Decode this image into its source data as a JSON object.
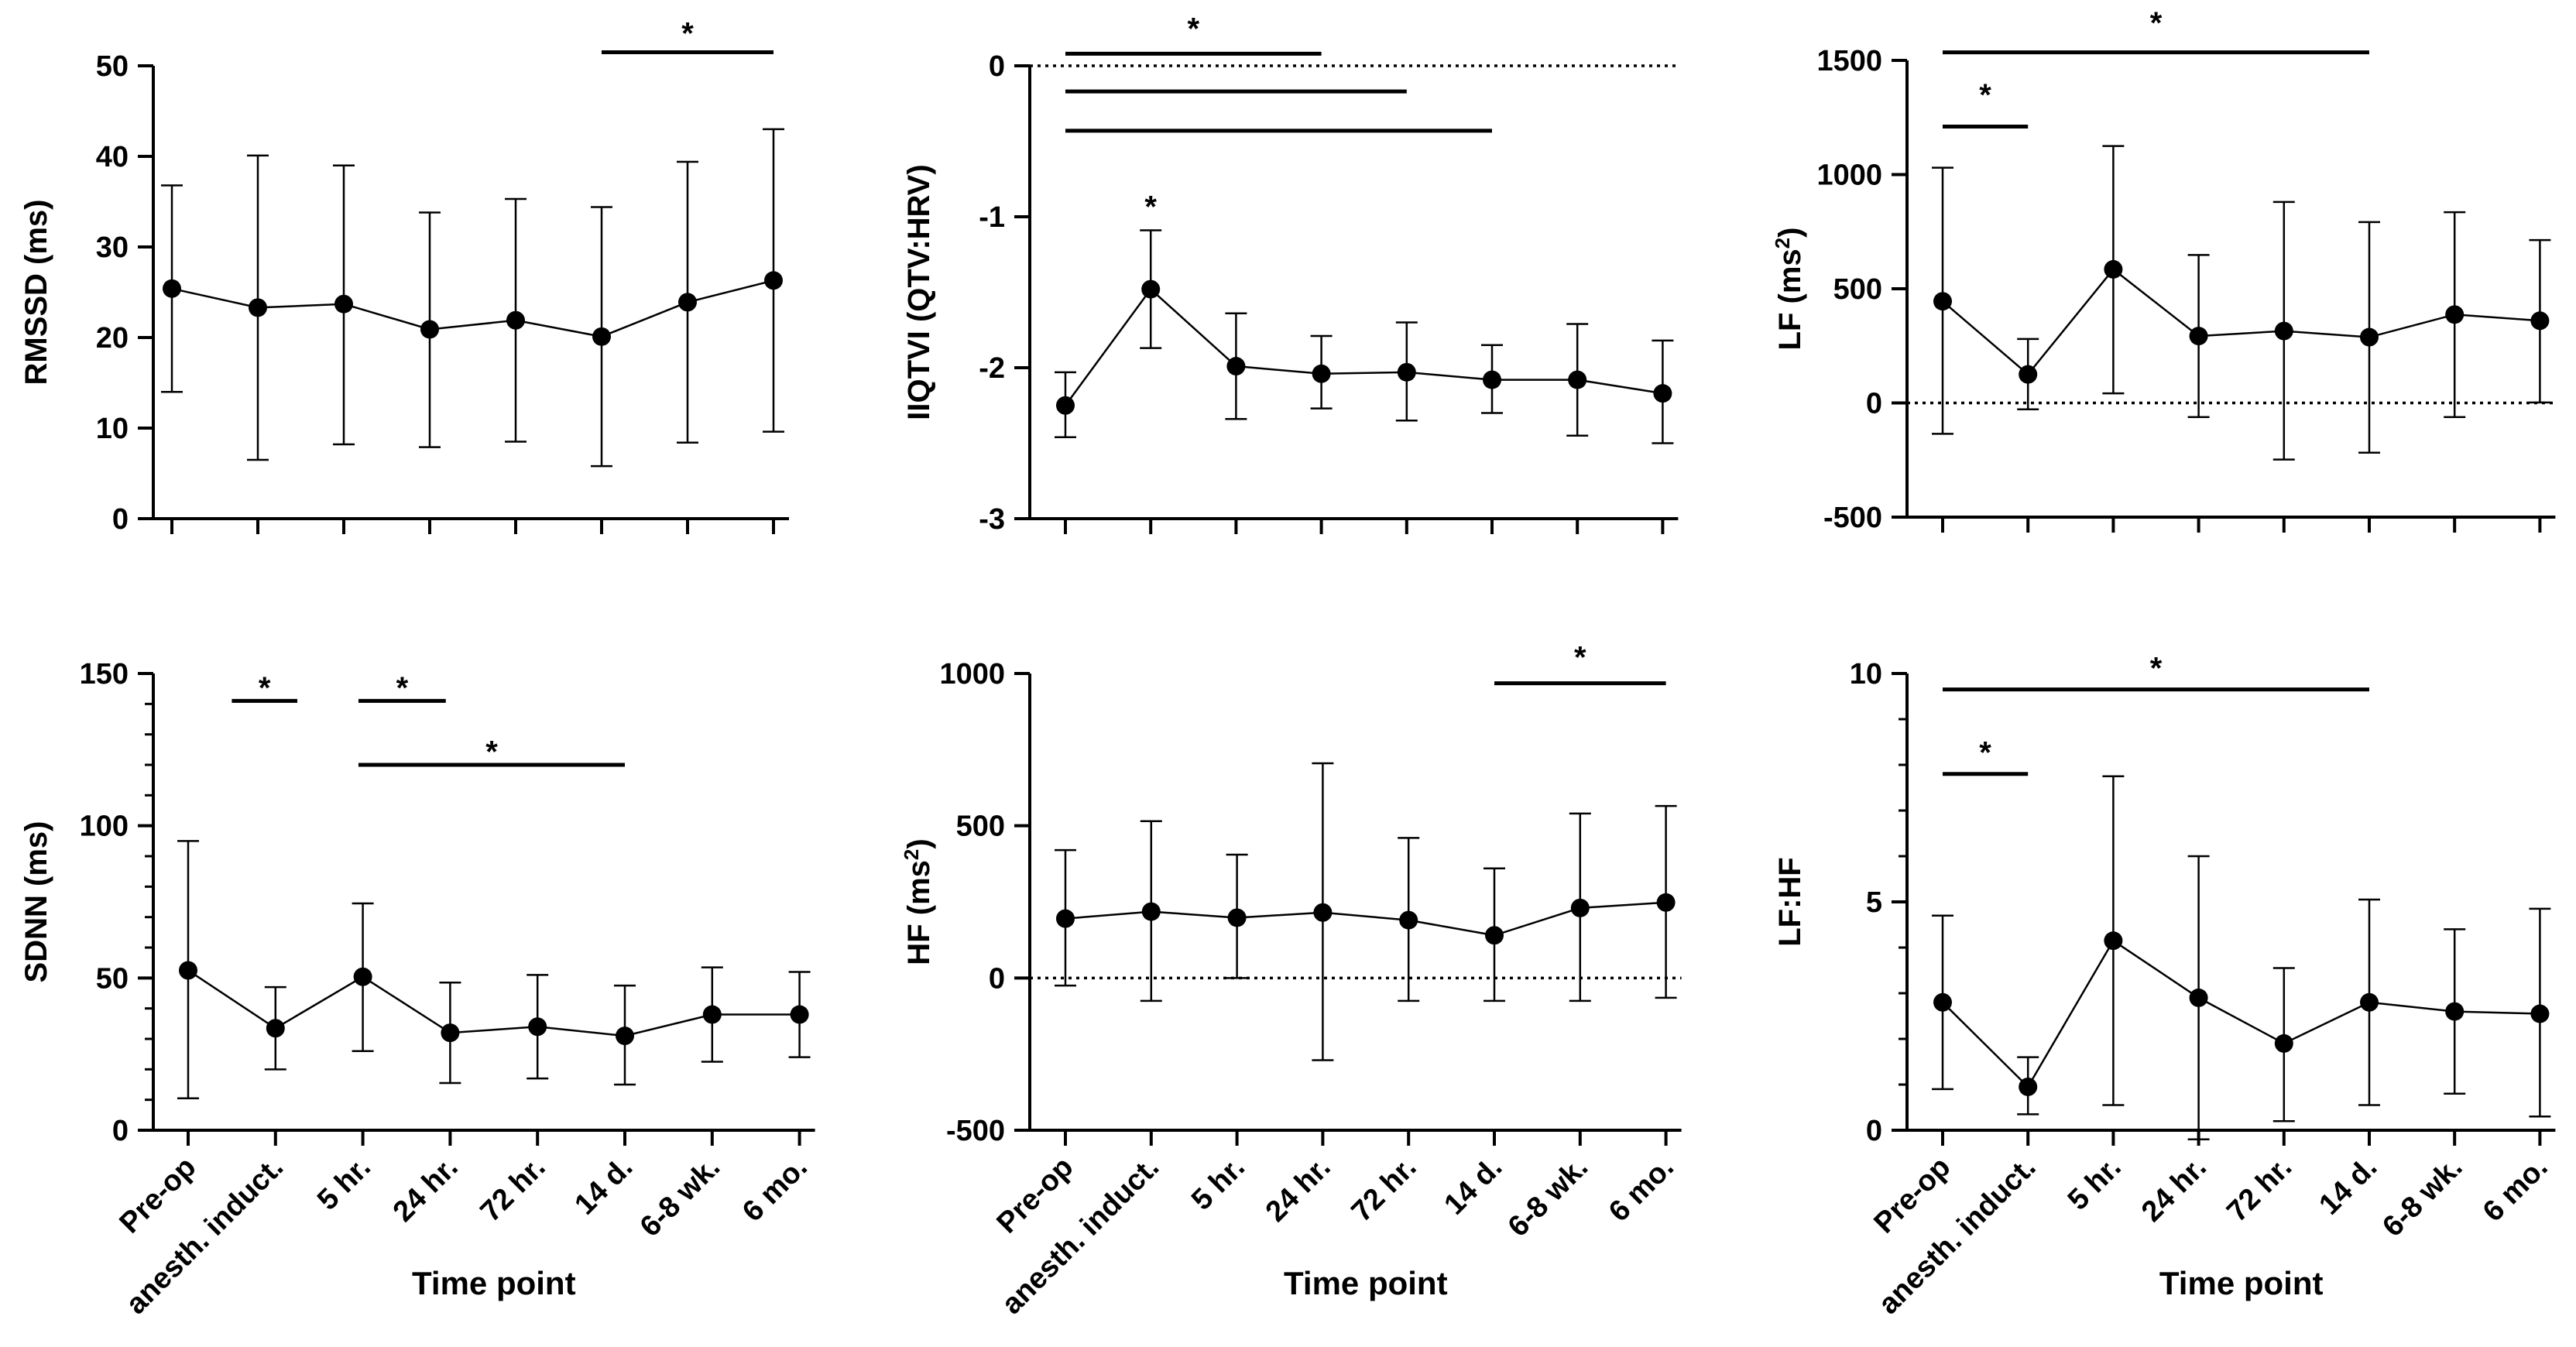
{
  "figure": {
    "xlabel": "Time point",
    "categories": [
      "Pre-op",
      "anesth. induct.",
      "5 hr.",
      "24 hr.",
      "72 hr.",
      "14 d.",
      "6-8 wk.",
      "6 mo."
    ]
  },
  "chart_data": [
    {
      "id": "rmssd",
      "type": "line",
      "ylabel": "RMSSD (ms)",
      "ylim": [
        0,
        50
      ],
      "ticks": [
        0,
        10,
        20,
        30,
        40,
        50
      ],
      "tick_labels": [
        "0",
        "10",
        "20",
        "30",
        "40",
        "50"
      ],
      "minor_ticks": [],
      "zero_line": false,
      "show_xlabels": false,
      "values": [
        25.4,
        23.3,
        23.7,
        20.9,
        21.9,
        20.1,
        23.9,
        26.3
      ],
      "err_hi": [
        36.8,
        40.1,
        39.0,
        33.8,
        35.3,
        34.4,
        39.4,
        43.0
      ],
      "err_lo": [
        14.0,
        6.5,
        8.2,
        7.9,
        8.5,
        5.8,
        8.4,
        9.6
      ],
      "sig": [
        {
          "from": 5,
          "to": 7,
          "y": 51.5,
          "star_y": 54.5,
          "label": "*"
        }
      ]
    },
    {
      "id": "iqtvi",
      "type": "line",
      "ylabel": "IIQTVI (QTV:HRV)",
      "ylim": [
        -3,
        0
      ],
      "ticks": [
        -3,
        -2,
        -1,
        0
      ],
      "tick_labels": [
        "-3",
        "-2",
        "-1",
        "0"
      ],
      "minor_ticks": [],
      "zero_line": true,
      "show_xlabels": false,
      "values": [
        -2.25,
        -1.48,
        -1.99,
        -2.04,
        -2.03,
        -2.08,
        -2.08,
        -2.17
      ],
      "err_hi": [
        -2.03,
        -1.09,
        -1.64,
        -1.79,
        -1.7,
        -1.85,
        -1.71,
        -1.82
      ],
      "err_lo": [
        -2.46,
        -1.87,
        -2.34,
        -2.27,
        -2.35,
        -2.3,
        -2.45,
        -2.5
      ],
      "sig": [
        {
          "from": 0,
          "to": 3,
          "y": 0.08,
          "star_y": 0.3,
          "label": "*"
        },
        {
          "from": 0,
          "to": 4,
          "y": -0.17,
          "star_y": null,
          "label": ""
        },
        {
          "from": 0,
          "to": 5,
          "y": -0.43,
          "star_y": null,
          "label": ""
        },
        {
          "from": 1,
          "to": 1,
          "y": null,
          "star_y": -0.88,
          "label": "*"
        }
      ]
    },
    {
      "id": "lf",
      "type": "line",
      "ylabel": "LF (ms²)",
      "ylim": [
        -500,
        1500
      ],
      "ticks": [
        -500,
        0,
        500,
        1000,
        1500
      ],
      "tick_labels": [
        "-500",
        "0",
        "500",
        "1000",
        "1500"
      ],
      "minor_ticks": [],
      "zero_line": true,
      "show_xlabels": false,
      "values": [
        445,
        125,
        585,
        293,
        315,
        288,
        387,
        360
      ],
      "err_hi": [
        1030,
        280,
        1125,
        648,
        880,
        792,
        835,
        713
      ],
      "err_lo": [
        -135,
        -28,
        42,
        -62,
        -248,
        -218,
        -62,
        2
      ],
      "sig": [
        {
          "from": 0,
          "to": 5,
          "y": 1535,
          "star_y": 1700,
          "label": "*"
        },
        {
          "from": 0,
          "to": 1,
          "y": 1210,
          "star_y": 1385,
          "label": "*"
        }
      ]
    },
    {
      "id": "sdnn",
      "type": "line",
      "ylabel": "SDNN (ms)",
      "ylim": [
        0,
        150
      ],
      "ticks": [
        0,
        50,
        100,
        150
      ],
      "tick_labels": [
        "0",
        "50",
        "100",
        "150"
      ],
      "minor_ticks": [
        10,
        20,
        30,
        40,
        60,
        70,
        80,
        90,
        110,
        120,
        130,
        140
      ],
      "zero_line": false,
      "show_xlabels": true,
      "values": [
        52.5,
        33.5,
        50.4,
        32.0,
        34.0,
        31.0,
        38.0,
        38.0
      ],
      "err_hi": [
        95.0,
        47.0,
        74.5,
        48.5,
        51.0,
        47.5,
        53.5,
        52.0
      ],
      "err_lo": [
        10.5,
        20.0,
        26.0,
        15.5,
        17.0,
        15.0,
        22.5,
        24.0
      ],
      "sig": [
        {
          "from": 0.5,
          "to": 1.25,
          "y": 141,
          "star_y": 148,
          "label": "*"
        },
        {
          "from": 1.95,
          "to": 2.95,
          "y": 141,
          "star_y": 148,
          "label": "*"
        },
        {
          "from": 1.95,
          "to": 5.0,
          "y": 120,
          "star_y": 127,
          "label": "*"
        }
      ]
    },
    {
      "id": "hf",
      "type": "line",
      "ylabel": "HF (ms²)",
      "ylim": [
        -500,
        1000
      ],
      "ticks": [
        -500,
        0,
        500,
        1000
      ],
      "tick_labels": [
        "-500",
        "0",
        "500",
        "1000"
      ],
      "minor_ticks": [],
      "zero_line": true,
      "show_xlabels": true,
      "values": [
        195,
        218,
        198,
        215,
        190,
        140,
        230,
        248
      ],
      "err_hi": [
        420,
        515,
        405,
        705,
        460,
        360,
        540,
        565
      ],
      "err_lo": [
        -25,
        -75,
        0,
        -270,
        -75,
        -75,
        -75,
        -65
      ],
      "sig": [
        {
          "from": 5,
          "to": 7,
          "y": 968,
          "star_y": 1080,
          "label": "*"
        }
      ]
    },
    {
      "id": "lfhf",
      "type": "line",
      "ylabel": "LF:HF",
      "ylim": [
        0,
        10
      ],
      "ticks": [
        0,
        5,
        10
      ],
      "tick_labels": [
        "0",
        "5",
        "10"
      ],
      "minor_ticks": [
        1,
        2,
        3,
        4,
        6,
        7,
        8,
        9
      ],
      "zero_line": false,
      "show_xlabels": true,
      "values": [
        2.8,
        0.95,
        4.15,
        2.9,
        1.9,
        2.8,
        2.6,
        2.55
      ],
      "err_hi": [
        4.7,
        1.6,
        7.75,
        6.0,
        3.55,
        5.05,
        4.4,
        4.85
      ],
      "err_lo": [
        0.9,
        0.35,
        0.55,
        -0.2,
        0.2,
        0.55,
        0.8,
        0.3
      ],
      "sig": [
        {
          "from": 0,
          "to": 5,
          "y": 9.65,
          "star_y": 10.3,
          "label": "*"
        },
        {
          "from": 0,
          "to": 1,
          "y": 7.8,
          "star_y": 8.45,
          "label": "*"
        }
      ]
    }
  ]
}
